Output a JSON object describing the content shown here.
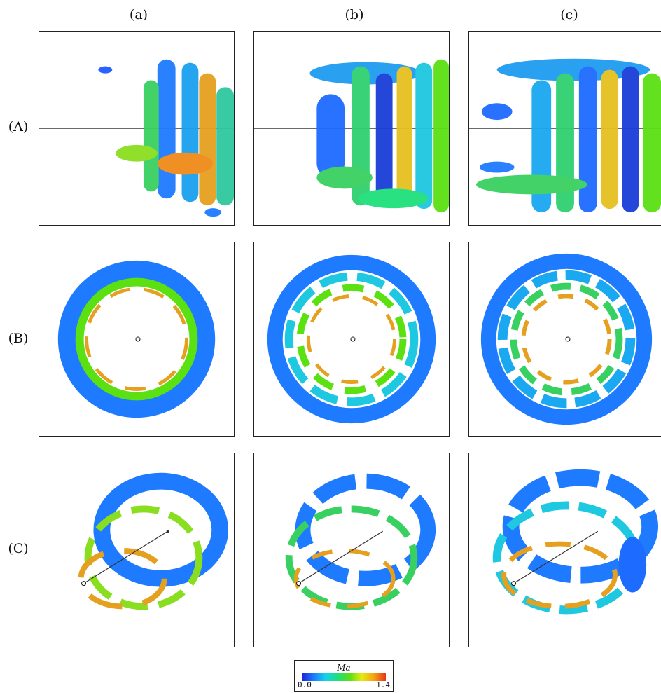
{
  "columns": [
    "(a)",
    "(b)",
    "(c)"
  ],
  "rows": [
    "(A)",
    "(B)",
    "(C)"
  ],
  "colorbar": {
    "title": "Ma",
    "min": "0.0",
    "max": "1.4",
    "colors": [
      "#1a23d8",
      "#1e7bff",
      "#14d3e8",
      "#1ee07a",
      "#5be012",
      "#e6ea10",
      "#f5a312",
      "#e6361a"
    ]
  }
}
